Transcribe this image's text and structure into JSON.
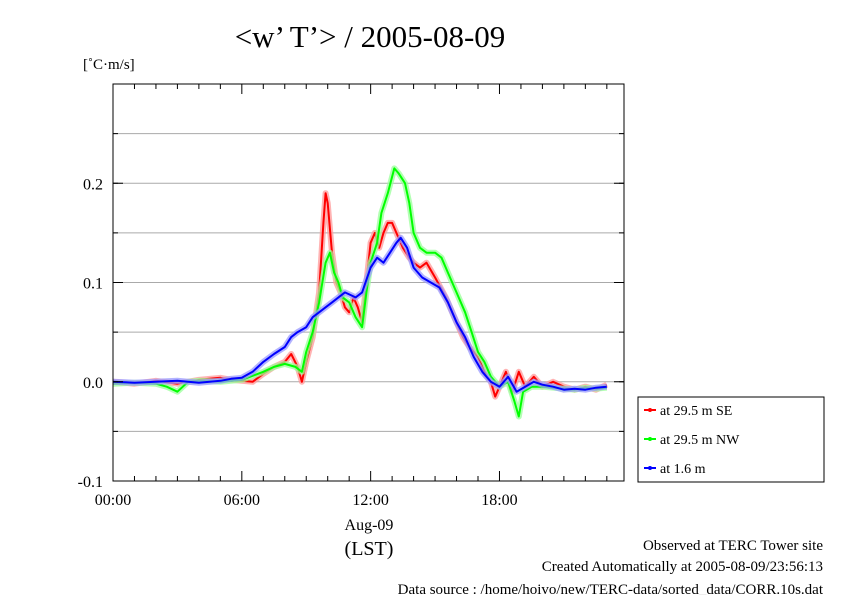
{
  "chart_data": {
    "type": "line",
    "title": "<w’ T’> / 2005-08-09",
    "ylabel": "[˚C·m/s]",
    "xlabel_date": "Aug-09",
    "xlabel_tz": "(LST)",
    "xlim": [
      0,
      23
    ],
    "ylim": [
      -0.1,
      0.3
    ],
    "x_ticks": [
      0,
      6,
      12,
      18
    ],
    "x_tick_labels": [
      "00:00",
      "06:00",
      "12:00",
      "18:00"
    ],
    "y_ticks": [
      -0.1,
      0.0,
      0.1,
      0.2
    ],
    "y_tick_labels": [
      "-0.1",
      "0.0",
      "0.1",
      "0.2"
    ],
    "grid": true,
    "legend_position": "outside-right-bottom",
    "series": [
      {
        "name": "at 29.5 m SE",
        "color": "#ff0000",
        "points": [
          [
            0,
            0.0
          ],
          [
            1,
            -0.002
          ],
          [
            2,
            0.001
          ],
          [
            3,
            -0.002
          ],
          [
            4,
            0.002
          ],
          [
            5,
            0.004
          ],
          [
            5.5,
            0.002
          ],
          [
            6,
            0.001
          ],
          [
            6.5,
            0.0
          ],
          [
            7,
            0.008
          ],
          [
            7.5,
            0.015
          ],
          [
            8,
            0.02
          ],
          [
            8.3,
            0.028
          ],
          [
            8.6,
            0.015
          ],
          [
            8.8,
            0.0
          ],
          [
            9,
            0.02
          ],
          [
            9.3,
            0.045
          ],
          [
            9.6,
            0.09
          ],
          [
            9.8,
            0.16
          ],
          [
            9.9,
            0.19
          ],
          [
            10,
            0.18
          ],
          [
            10.2,
            0.13
          ],
          [
            10.4,
            0.1
          ],
          [
            10.6,
            0.09
          ],
          [
            10.8,
            0.075
          ],
          [
            11,
            0.07
          ],
          [
            11.2,
            0.085
          ],
          [
            11.4,
            0.075
          ],
          [
            11.6,
            0.06
          ],
          [
            11.8,
            0.1
          ],
          [
            12,
            0.14
          ],
          [
            12.2,
            0.15
          ],
          [
            12.4,
            0.135
          ],
          [
            12.6,
            0.15
          ],
          [
            12.8,
            0.16
          ],
          [
            13,
            0.16
          ],
          [
            13.2,
            0.15
          ],
          [
            13.5,
            0.135
          ],
          [
            13.8,
            0.125
          ],
          [
            14,
            0.12
          ],
          [
            14.3,
            0.115
          ],
          [
            14.6,
            0.12
          ],
          [
            15,
            0.105
          ],
          [
            15.5,
            0.085
          ],
          [
            16,
            0.06
          ],
          [
            16.3,
            0.045
          ],
          [
            16.6,
            0.035
          ],
          [
            17,
            0.025
          ],
          [
            17.3,
            0.01
          ],
          [
            17.6,
            0.0
          ],
          [
            17.8,
            -0.015
          ],
          [
            18,
            -0.005
          ],
          [
            18.3,
            0.01
          ],
          [
            18.6,
            -0.01
          ],
          [
            18.9,
            0.01
          ],
          [
            19.2,
            -0.005
          ],
          [
            19.6,
            0.005
          ],
          [
            20,
            -0.005
          ],
          [
            20.5,
            0.0
          ],
          [
            21,
            -0.005
          ],
          [
            21.5,
            -0.008
          ],
          [
            22,
            -0.005
          ],
          [
            22.5,
            -0.008
          ],
          [
            23,
            -0.003
          ]
        ]
      },
      {
        "name": "at 29.5 m NW",
        "color": "#00ff00",
        "points": [
          [
            0,
            -0.002
          ],
          [
            1,
            -0.001
          ],
          [
            2,
            -0.002
          ],
          [
            2.5,
            -0.005
          ],
          [
            3,
            -0.01
          ],
          [
            3.5,
            0.0
          ],
          [
            4,
            0.001
          ],
          [
            5,
            0.0
          ],
          [
            6,
            0.002
          ],
          [
            6.5,
            0.006
          ],
          [
            7,
            0.01
          ],
          [
            7.5,
            0.015
          ],
          [
            8,
            0.018
          ],
          [
            8.5,
            0.015
          ],
          [
            8.8,
            0.01
          ],
          [
            9,
            0.03
          ],
          [
            9.3,
            0.05
          ],
          [
            9.6,
            0.08
          ],
          [
            9.9,
            0.12
          ],
          [
            10.1,
            0.13
          ],
          [
            10.3,
            0.11
          ],
          [
            10.5,
            0.1
          ],
          [
            10.7,
            0.085
          ],
          [
            11,
            0.08
          ],
          [
            11.3,
            0.065
          ],
          [
            11.6,
            0.055
          ],
          [
            11.8,
            0.09
          ],
          [
            12,
            0.12
          ],
          [
            12.3,
            0.14
          ],
          [
            12.5,
            0.17
          ],
          [
            12.8,
            0.19
          ],
          [
            13.1,
            0.215
          ],
          [
            13.3,
            0.21
          ],
          [
            13.6,
            0.2
          ],
          [
            13.8,
            0.18
          ],
          [
            14,
            0.15
          ],
          [
            14.3,
            0.135
          ],
          [
            14.6,
            0.13
          ],
          [
            15,
            0.13
          ],
          [
            15.3,
            0.125
          ],
          [
            15.6,
            0.11
          ],
          [
            16,
            0.09
          ],
          [
            16.4,
            0.07
          ],
          [
            16.7,
            0.05
          ],
          [
            17,
            0.03
          ],
          [
            17.3,
            0.02
          ],
          [
            17.6,
            0.005
          ],
          [
            18,
            -0.005
          ],
          [
            18.4,
            0.0
          ],
          [
            18.7,
            -0.02
          ],
          [
            18.9,
            -0.035
          ],
          [
            19.1,
            -0.01
          ],
          [
            19.5,
            -0.005
          ],
          [
            20,
            -0.005
          ],
          [
            20.5,
            -0.006
          ],
          [
            21,
            -0.007
          ],
          [
            21.5,
            -0.008
          ],
          [
            22,
            -0.006
          ],
          [
            22.5,
            -0.007
          ],
          [
            23,
            -0.006
          ]
        ]
      },
      {
        "name": "at 1.6 m",
        "color": "#0000ff",
        "points": [
          [
            0,
            0.0
          ],
          [
            1,
            -0.001
          ],
          [
            2,
            0.0
          ],
          [
            3,
            0.001
          ],
          [
            4,
            -0.001
          ],
          [
            5,
            0.001
          ],
          [
            5.5,
            0.003
          ],
          [
            6,
            0.004
          ],
          [
            6.5,
            0.01
          ],
          [
            7,
            0.02
          ],
          [
            7.5,
            0.028
          ],
          [
            8,
            0.035
          ],
          [
            8.3,
            0.045
          ],
          [
            8.6,
            0.05
          ],
          [
            9,
            0.055
          ],
          [
            9.3,
            0.065
          ],
          [
            9.6,
            0.07
          ],
          [
            9.9,
            0.075
          ],
          [
            10.2,
            0.08
          ],
          [
            10.5,
            0.085
          ],
          [
            10.8,
            0.09
          ],
          [
            11,
            0.088
          ],
          [
            11.3,
            0.085
          ],
          [
            11.6,
            0.09
          ],
          [
            12,
            0.115
          ],
          [
            12.3,
            0.125
          ],
          [
            12.6,
            0.12
          ],
          [
            12.9,
            0.13
          ],
          [
            13.2,
            0.14
          ],
          [
            13.4,
            0.145
          ],
          [
            13.7,
            0.135
          ],
          [
            14,
            0.115
          ],
          [
            14.4,
            0.105
          ],
          [
            14.8,
            0.1
          ],
          [
            15.2,
            0.095
          ],
          [
            15.6,
            0.08
          ],
          [
            16,
            0.06
          ],
          [
            16.4,
            0.045
          ],
          [
            16.8,
            0.025
          ],
          [
            17.2,
            0.01
          ],
          [
            17.6,
            0.0
          ],
          [
            18,
            -0.005
          ],
          [
            18.4,
            0.005
          ],
          [
            18.8,
            -0.01
          ],
          [
            19.2,
            -0.005
          ],
          [
            19.6,
            0.0
          ],
          [
            20,
            -0.003
          ],
          [
            20.5,
            -0.005
          ],
          [
            21,
            -0.008
          ],
          [
            21.5,
            -0.007
          ],
          [
            22,
            -0.008
          ],
          [
            22.5,
            -0.006
          ],
          [
            23,
            -0.005
          ]
        ]
      }
    ]
  },
  "footer": {
    "line1": "Observed at TERC Tower site",
    "line2": "Created Automatically at 2005-08-09/23:56:13",
    "line3": "Data source : /home/hoivo/new/TERC-data/sorted_data/CORR.10s.dat"
  }
}
